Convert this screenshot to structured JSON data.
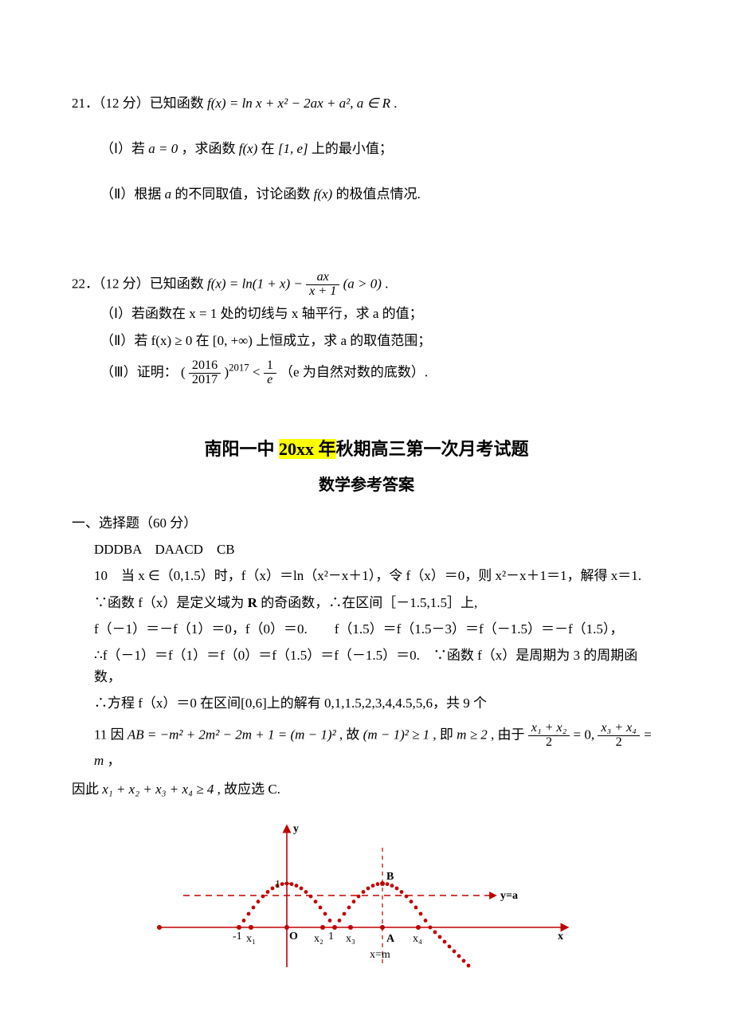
{
  "p21": {
    "head": "21．（12 分）已知函数 ",
    "fx": "f(x) = ln x + x² − 2ax + a², a ∈ R",
    "tail": " .",
    "part1_pre": "（Ⅰ）若 ",
    "part1_cond": "a = 0",
    "part1_mid1": " ，求函数 ",
    "part1_fx": "f(x)",
    "part1_mid2": " 在 ",
    "part1_int": "[1, e]",
    "part1_tail": " 上的最小值；",
    "part2_pre": "（Ⅱ）根据 ",
    "part2_a": "a",
    "part2_mid": " 的不同取值，讨论函数 ",
    "part2_fx": "f(x)",
    "part2_tail": " 的极值点情况."
  },
  "p22": {
    "head": "22．（12 分）已知函数 ",
    "fx_prefix": "f(x) = ln(1 + x) − ",
    "frac_num": "ax",
    "frac_den": "x + 1",
    "fx_suffix": " (a > 0)",
    "tail": " .",
    "part1": "（Ⅰ）若函数在 x = 1 处的切线与 x 轴平行，求 a 的值；",
    "part2": "（Ⅱ）若 f(x) ≥ 0 在 [0, +∞) 上恒成立，求 a 的取值范围；",
    "part3_pre": "（Ⅲ）证明：",
    "part3_open": "(",
    "part3_frac_num": "2016",
    "part3_frac_den": "2017",
    "part3_close": ")",
    "part3_exp": "2017",
    "part3_lt": " < ",
    "part3_rhs_num": "1",
    "part3_rhs_den": "e",
    "part3_tail": "  （e 为自然对数的底数）."
  },
  "titles": {
    "main_a": "南阳一中 ",
    "main_hl": "20xx 年",
    "main_b": "秋期高三第一次月考试题",
    "sub": "数学参考答案"
  },
  "ans": {
    "sec_head": "一、选择题（60 分）",
    "letters": "DDDBA　DAACD　CB",
    "a10_l1": "10　当 x ∈（0,1.5）时，f（x）＝ln（x²－x＋1），令 f（x）＝0，则 x²－x＋1＝1，解得 x＝1.",
    "a10_l2_a": "∵函数 f（x）是定义域为 ",
    "a10_l2_R": "R",
    "a10_l2_b": " 的奇函数，∴在区间［－1.5,1.5］上,",
    "a10_l3": "f（－1）＝－f（1）＝0，f（0）＝0.　　f（1.5）＝f（1.5－3）＝f（－1.5）＝－f（1.5），",
    "a10_l4": "∴f（－1）＝f（1）＝f（0）＝f（1.5）＝f（－1.5）＝0.　∵函数 f（x）是周期为 3 的周期函数，",
    "a10_l5": "∴方程 f（x）＝0 在区间[0,6]上的解有 0,1,1.5,2,3,4,4.5,5,6，共 9 个",
    "a11_pre": "11 因 ",
    "a11_eq": "AB = −m² + 2m² − 2m + 1 = (m − 1)²",
    "a11_mid1": ", 故 ",
    "a11_cond": "(m − 1)² ≥ 1",
    "a11_mid2": ", 即 ",
    "a11_m": "m ≥ 2",
    "a11_mid3": ", 由于 ",
    "a11_f1_num": "x₁ + x₂",
    "a11_f1_den": "2",
    "a11_f1_eq": " = 0, ",
    "a11_f2_num": "x₃ + x₄",
    "a11_f2_den": "2",
    "a11_f2_eq": " = m",
    "a11_comma": " ，",
    "a11_l2_pre": "因此 ",
    "a11_l2_sum": "x₁ + x₂ + x₃ + x₄ ≥ 4",
    "a11_l2_tail": ", 故应选 C."
  },
  "graph": {
    "axis_color": "#c00000",
    "point_color": "#c00000",
    "label_color": "#000000",
    "y_label": "y",
    "x_label": "x",
    "ya_label": "y=a",
    "B_label": "B",
    "A_label": "A",
    "O_label": "O",
    "xm_label": "x=m",
    "one": "1",
    "neg1": "-1",
    "x1": "x₁",
    "x2": "x₂",
    "x3": "x₃",
    "x4": "x₄"
  }
}
